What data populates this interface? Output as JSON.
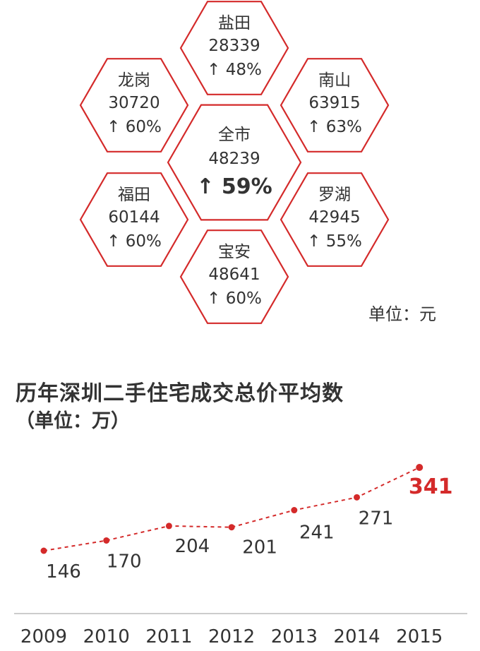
{
  "colors": {
    "accent": "#d42a2a",
    "text": "#333333",
    "axis": "#bbbbbb"
  },
  "districts": [
    {
      "id": "yantian",
      "name": "盐田",
      "price": "28339",
      "change": "48%",
      "highlight": false,
      "emphasis": false
    },
    {
      "id": "longgang",
      "name": "龙岗",
      "price": "30720",
      "change": "60%",
      "highlight": false,
      "emphasis": false
    },
    {
      "id": "nanshan",
      "name": "南山",
      "price": "63915",
      "change": "63%",
      "highlight": true,
      "emphasis": false
    },
    {
      "id": "city",
      "name": "全市",
      "price": "48239",
      "change": "59%",
      "highlight": false,
      "emphasis": true
    },
    {
      "id": "futian",
      "name": "福田",
      "price": "60144",
      "change": "60%",
      "highlight": false,
      "emphasis": false
    },
    {
      "id": "luohu",
      "name": "罗湖",
      "price": "42945",
      "change": "55%",
      "highlight": false,
      "emphasis": false
    },
    {
      "id": "baoan",
      "name": "宝安",
      "price": "48641",
      "change": "60%",
      "highlight": false,
      "emphasis": false
    }
  ],
  "price_unit_note": "单位：元",
  "arrow_glyph": "↑",
  "chart_title": "历年深圳二手住宅成交总价平均数",
  "chart_subtitle": "（单位：万）",
  "chart_data": {
    "type": "line",
    "title": "历年深圳二手住宅成交总价平均数",
    "ylabel": "（单位：万）",
    "x": [
      "2009",
      "2010",
      "2011",
      "2012",
      "2013",
      "2014",
      "2015"
    ],
    "series": [
      {
        "values": [
          146,
          170,
          204,
          201,
          241,
          271,
          341
        ]
      }
    ],
    "ylim": [
      120,
      360
    ],
    "grid": false,
    "highlight_last": true,
    "line_style": "dashed"
  }
}
